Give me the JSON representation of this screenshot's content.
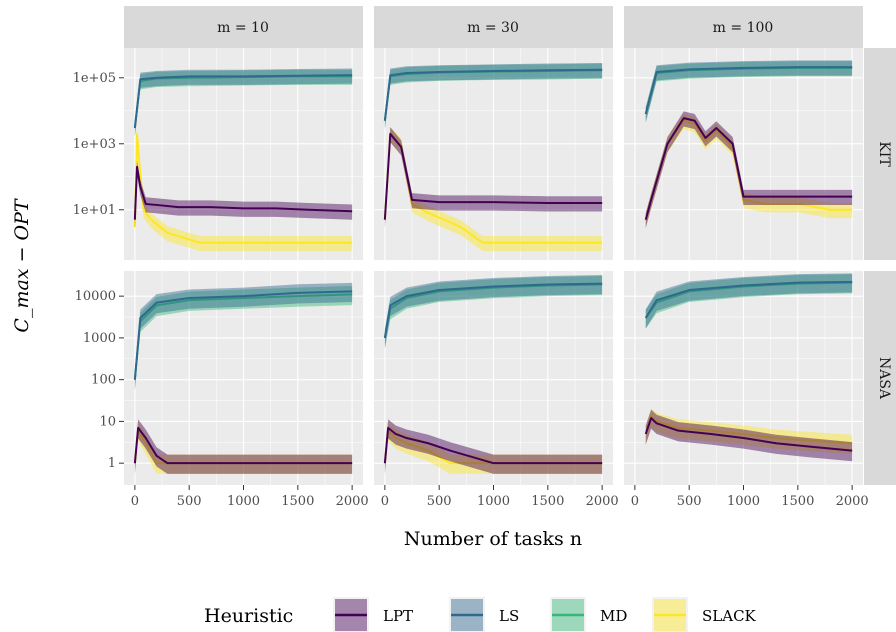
{
  "chart_data": {
    "type": "line",
    "xlabel": "Number of tasks n",
    "ylabel": "C_max − OPT",
    "x_ticks": [
      "0",
      "500",
      "1000",
      "1500",
      "2000"
    ],
    "columns": [
      "m = 10",
      "m = 30",
      "m = 100"
    ],
    "rows": [
      "KIT",
      "NASA"
    ],
    "legend": {
      "title": "Heuristic",
      "entries": [
        "LPT",
        "LS",
        "MD",
        "SLACK"
      ],
      "position": "bottom"
    },
    "colors": {
      "LPT": "#440154",
      "LS": "#31688e",
      "MD": "#35b779",
      "SLACK": "#fde725"
    },
    "y_axes": {
      "KIT": {
        "scale": "log10",
        "ticks": [
          "1e+01",
          "1e+03",
          "1e+05"
        ],
        "ylim": [
          0.3,
          800000
        ]
      },
      "NASA": {
        "scale": "log10",
        "ticks": [
          "1",
          "10",
          "100",
          "1000",
          "10000"
        ],
        "ylim": [
          0.3,
          40000
        ]
      }
    },
    "panels": [
      {
        "row": "KIT",
        "col": "m = 10",
        "series": [
          {
            "name": "LPT",
            "x": [
              0,
              20,
              50,
              100,
              200,
              400,
              700,
              1000,
              1300,
              1600,
              2000
            ],
            "y": [
              5,
              200,
              50,
              15,
              14,
              12,
              12,
              11,
              11,
              10,
              9
            ]
          },
          {
            "name": "LS",
            "x": [
              0,
              50,
              200,
              500,
              1000,
              1500,
              2000
            ],
            "y": [
              3000,
              90000,
              100000,
              110000,
              110000,
              115000,
              120000
            ]
          },
          {
            "name": "MD",
            "x": [
              0,
              50,
              200,
              500,
              1000,
              1500,
              2000
            ],
            "y": [
              3000,
              80000,
              95000,
              100000,
              105000,
              110000,
              110000
            ]
          },
          {
            "name": "SLACK",
            "x": [
              0,
              20,
              40,
              80,
              150,
              300,
              600,
              1000,
              1500,
              2000
            ],
            "y": [
              3,
              2000,
              300,
              10,
              5,
              2,
              1,
              1,
              1,
              1
            ]
          }
        ]
      },
      {
        "row": "KIT",
        "col": "m = 30",
        "series": [
          {
            "name": "LPT",
            "x": [
              0,
              50,
              150,
              250,
              500,
              1000,
              1500,
              2000
            ],
            "y": [
              5,
              2000,
              800,
              20,
              17,
              17,
              16,
              16
            ]
          },
          {
            "name": "LS",
            "x": [
              0,
              50,
              200,
              500,
              1000,
              1500,
              2000
            ],
            "y": [
              5000,
              120000,
              140000,
              150000,
              160000,
              170000,
              175000
            ]
          },
          {
            "name": "MD",
            "x": [
              0,
              50,
              200,
              500,
              1000,
              1500,
              2000
            ],
            "y": [
              5000,
              110000,
              130000,
              145000,
              155000,
              160000,
              170000
            ]
          },
          {
            "name": "SLACK",
            "x": [
              0,
              50,
              150,
              250,
              400,
              700,
              900,
              1500,
              2000
            ],
            "y": [
              5,
              2000,
              900,
              15,
              8,
              3,
              1,
              1,
              1
            ]
          }
        ]
      },
      {
        "row": "KIT",
        "col": "m = 100",
        "series": [
          {
            "name": "LPT",
            "x": [
              100,
              150,
              300,
              450,
              550,
              650,
              750,
              900,
              1000,
              1500,
              2000
            ],
            "y": [
              5,
              20,
              1000,
              6000,
              5000,
              1500,
              3000,
              1000,
              25,
              25,
              25
            ]
          },
          {
            "name": "LS",
            "x": [
              100,
              200,
              500,
              1000,
              1500,
              2000
            ],
            "y": [
              8000,
              150000,
              180000,
              200000,
              210000,
              210000
            ]
          },
          {
            "name": "MD",
            "x": [
              100,
              200,
              500,
              1000,
              1500,
              2000
            ],
            "y": [
              8000,
              140000,
              170000,
              190000,
              200000,
              200000
            ]
          },
          {
            "name": "SLACK",
            "x": [
              100,
              150,
              300,
              450,
              550,
              650,
              750,
              900,
              1000,
              1200,
              1500,
              1800,
              2000
            ],
            "y": [
              5,
              20,
              1000,
              5000,
              4000,
              1200,
              2500,
              800,
              20,
              15,
              15,
              10,
              10
            ]
          }
        ]
      },
      {
        "row": "NASA",
        "col": "m = 10",
        "series": [
          {
            "name": "LPT",
            "x": [
              0,
              30,
              100,
              200,
              300,
              600,
              1000,
              1500,
              2000
            ],
            "y": [
              1,
              7,
              4,
              1.5,
              1,
              1,
              1,
              1,
              1
            ]
          },
          {
            "name": "LS",
            "x": [
              0,
              50,
              200,
              500,
              1000,
              1500,
              2000
            ],
            "y": [
              100,
              3000,
              7000,
              9000,
              10000,
              12000,
              13000
            ]
          },
          {
            "name": "MD",
            "x": [
              0,
              50,
              200,
              500,
              1000,
              1500,
              2000
            ],
            "y": [
              100,
              2500,
              6000,
              8000,
              9000,
              10000,
              11000
            ]
          },
          {
            "name": "SLACK",
            "x": [
              0,
              30,
              100,
              200,
              400,
              800,
              1200,
              1600,
              2000
            ],
            "y": [
              1,
              6,
              3,
              1,
              1,
              1,
              1,
              1,
              1
            ]
          }
        ]
      },
      {
        "row": "NASA",
        "col": "m = 30",
        "series": [
          {
            "name": "LPT",
            "x": [
              0,
              30,
              100,
              200,
              400,
              600,
              1000,
              1500,
              2000
            ],
            "y": [
              1,
              7,
              5,
              4,
              3,
              2,
              1,
              1,
              1
            ]
          },
          {
            "name": "LS",
            "x": [
              0,
              50,
              200,
              500,
              1000,
              1500,
              2000
            ],
            "y": [
              1000,
              6000,
              10000,
              14000,
              17000,
              19000,
              20000
            ]
          },
          {
            "name": "MD",
            "x": [
              0,
              50,
              200,
              500,
              1000,
              1500,
              2000
            ],
            "y": [
              1000,
              5000,
              9000,
              13000,
              16000,
              18000,
              19000
            ]
          },
          {
            "name": "SLACK",
            "x": [
              0,
              30,
              100,
              200,
              400,
              600,
              1000,
              1500,
              2000
            ],
            "y": [
              1,
              6,
              4,
              3,
              2,
              1,
              1,
              1,
              1
            ]
          }
        ]
      },
      {
        "row": "NASA",
        "col": "m = 100",
        "series": [
          {
            "name": "LPT",
            "x": [
              100,
              150,
              200,
              400,
              700,
              1000,
              1300,
              1600,
              2000
            ],
            "y": [
              5,
              12,
              9,
              6,
              5,
              4,
              3,
              2.5,
              2
            ]
          },
          {
            "name": "LS",
            "x": [
              100,
              200,
              500,
              1000,
              1500,
              2000
            ],
            "y": [
              3000,
              8000,
              14000,
              18000,
              21000,
              22000
            ]
          },
          {
            "name": "MD",
            "x": [
              100,
              200,
              500,
              1000,
              1500,
              2000
            ],
            "y": [
              3000,
              7000,
              13000,
              17000,
              20000,
              21000
            ]
          },
          {
            "name": "SLACK",
            "x": [
              100,
              150,
              200,
              400,
              700,
              1000,
              1300,
              1600,
              2000
            ],
            "y": [
              5,
              13,
              10,
              7,
              6,
              5,
              4,
              3.5,
              3
            ]
          }
        ]
      }
    ]
  }
}
